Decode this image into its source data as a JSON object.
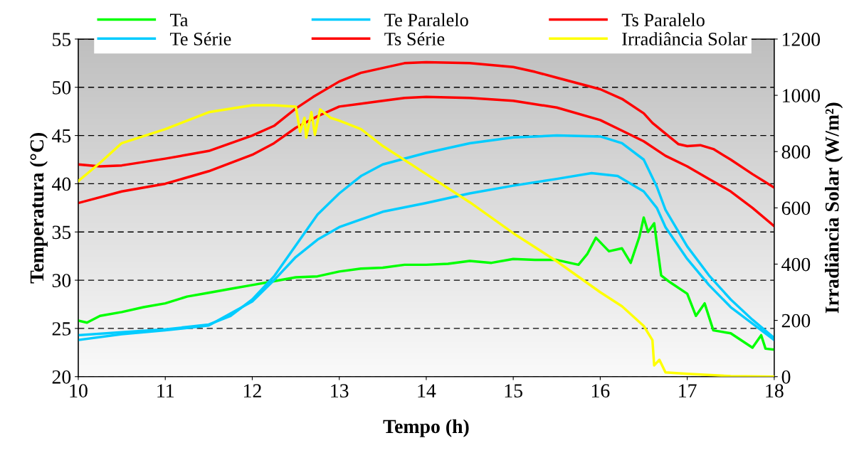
{
  "chart_data": {
    "type": "line",
    "xlabel": "Tempo (h)",
    "ylabel": "Temperatura (°C)",
    "y2label": "Irradiância Solar (W/m²)",
    "xlim": [
      10,
      18
    ],
    "xticks": [
      10,
      11,
      12,
      13,
      14,
      15,
      16,
      17,
      18
    ],
    "ylim": [
      20,
      55
    ],
    "yticks": [
      20,
      25,
      30,
      35,
      40,
      45,
      50,
      55
    ],
    "y2lim": [
      0,
      1200
    ],
    "y2ticks": [
      0,
      200,
      400,
      600,
      800,
      1000,
      1200
    ],
    "grid": "y",
    "legend": "top",
    "marker": "none",
    "line_style": "solid",
    "series": [
      {
        "name": "Ta",
        "color": "#00ff00",
        "x": [
          10,
          10.1,
          10.25,
          10.5,
          10.75,
          11,
          11.25,
          11.5,
          11.75,
          12,
          12.25,
          12.5,
          12.75,
          13,
          13.25,
          13.5,
          13.75,
          14,
          14.25,
          14.5,
          14.75,
          15,
          15.25,
          15.5,
          15.75,
          15.85,
          15.95,
          16.1,
          16.25,
          16.35,
          16.45,
          16.5,
          16.55,
          16.62,
          16.7,
          16.8,
          17,
          17.1,
          17.2,
          17.3,
          17.5,
          17.75,
          17.85,
          17.9,
          18
        ],
        "values": [
          25.8,
          25.6,
          26.3,
          26.7,
          27.2,
          27.6,
          28.3,
          28.7,
          29.1,
          29.5,
          29.9,
          30.3,
          30.4,
          30.9,
          31.2,
          31.3,
          31.6,
          31.6,
          31.7,
          32.0,
          31.8,
          32.2,
          32.1,
          32.1,
          31.6,
          32.7,
          34.4,
          33.0,
          33.3,
          31.8,
          34.5,
          36.5,
          35.0,
          35.9,
          30.5,
          29.8,
          28.6,
          26.3,
          27.6,
          24.8,
          24.5,
          23.0,
          24.3,
          22.9,
          22.8
        ]
      },
      {
        "name": "Te Série",
        "color": "#00ccff",
        "x": [
          10,
          10.5,
          11,
          11.5,
          12,
          12.25,
          12.5,
          12.75,
          13,
          13.5,
          14,
          14.5,
          15,
          15.5,
          15.9,
          16.2,
          16.5,
          16.65,
          16.75,
          17,
          17.25,
          17.5,
          17.75,
          18
        ],
        "values": [
          23.8,
          24.4,
          24.8,
          25.3,
          27.8,
          30.0,
          32.4,
          34.2,
          35.5,
          37.1,
          38.0,
          39.0,
          39.8,
          40.5,
          41.1,
          40.8,
          39.2,
          37.5,
          35.5,
          32.2,
          29.5,
          27.2,
          25.5,
          23.8
        ]
      },
      {
        "name": "Te Paralelo",
        "color": "#00ccff",
        "x": [
          10,
          10.5,
          11,
          11.5,
          11.75,
          12,
          12.25,
          12.5,
          12.75,
          13,
          13.25,
          13.5,
          14,
          14.5,
          15,
          15.5,
          16,
          16.25,
          16.5,
          16.65,
          16.75,
          17,
          17.25,
          17.5,
          17.75,
          18
        ],
        "values": [
          24.3,
          24.6,
          24.9,
          25.4,
          26.3,
          28.0,
          30.4,
          33.6,
          36.8,
          39.0,
          40.8,
          42.0,
          43.2,
          44.2,
          44.8,
          45.0,
          44.9,
          44.2,
          42.5,
          39.7,
          37.3,
          33.5,
          30.5,
          28.0,
          25.9,
          24.0
        ]
      },
      {
        "name": "Ts Série",
        "color": "#ff0000",
        "x": [
          10,
          10.5,
          11,
          11.5,
          12,
          12.25,
          12.5,
          12.75,
          13,
          13.5,
          13.75,
          14,
          14.5,
          15,
          15.5,
          16,
          16.25,
          16.5,
          16.75,
          17,
          17.25,
          17.5,
          17.75,
          18
        ],
        "values": [
          38.0,
          39.2,
          40.0,
          41.3,
          43.0,
          44.2,
          45.8,
          47.0,
          48.0,
          48.6,
          48.9,
          49.0,
          48.9,
          48.6,
          47.9,
          46.6,
          45.5,
          44.4,
          42.9,
          41.8,
          40.5,
          39.2,
          37.5,
          35.6
        ]
      },
      {
        "name": "Ts Paralelo",
        "color": "#ff0000",
        "x": [
          10,
          10.25,
          10.5,
          11,
          11.5,
          12,
          12.25,
          12.5,
          12.7,
          13,
          13.25,
          13.5,
          13.75,
          14,
          14.5,
          15,
          15.25,
          15.5,
          16,
          16.25,
          16.5,
          16.6,
          16.75,
          16.9,
          17,
          17.15,
          17.3,
          17.5,
          17.75,
          18
        ],
        "values": [
          42.0,
          41.8,
          41.9,
          42.6,
          43.4,
          45.0,
          46.0,
          47.8,
          49.0,
          50.6,
          51.5,
          52.0,
          52.5,
          52.6,
          52.5,
          52.1,
          51.6,
          51.0,
          49.8,
          48.8,
          47.3,
          46.3,
          45.2,
          44.1,
          43.9,
          44.0,
          43.6,
          42.5,
          41.0,
          39.6
        ]
      },
      {
        "name": "Irradiância Solar",
        "color": "#ffff00",
        "axis": "y2",
        "x": [
          10,
          10.25,
          10.5,
          11,
          11.5,
          12,
          12.25,
          12.5,
          12.55,
          12.6,
          12.62,
          12.68,
          12.72,
          12.78,
          12.9,
          13,
          13.25,
          13.5,
          14,
          14.5,
          15,
          15.5,
          16,
          16.25,
          16.5,
          16.6,
          16.62,
          16.68,
          16.75,
          17,
          17.5,
          18
        ],
        "values": [
          695,
          760,
          830,
          880,
          940,
          965,
          965,
          960,
          870,
          920,
          850,
          940,
          860,
          950,
          920,
          910,
          880,
          820,
          720,
          620,
          510,
          410,
          300,
          250,
          180,
          130,
          40,
          60,
          15,
          10,
          2,
          0
        ]
      }
    ]
  }
}
